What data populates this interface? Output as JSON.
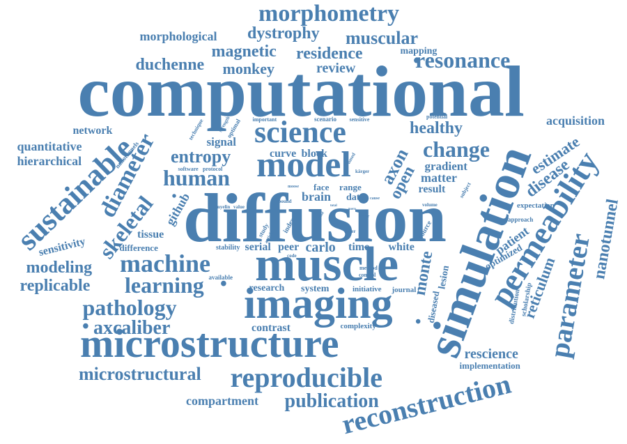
{
  "colors": {
    "word": "#4a7fb0",
    "background": "#ffffff"
  },
  "words": [
    "computational",
    "diffusion",
    "muscle",
    "imaging",
    "microstructure",
    "simulation",
    "model",
    "science",
    "permeability",
    "parameter",
    "reconstruction",
    "reproducible",
    "sustainable",
    "morphometry",
    "dystrophy",
    "muscular",
    "magnetic",
    "residence",
    "morphological",
    "duchenne",
    "monkey",
    "review",
    "resonance",
    "mapping",
    "change",
    "healthy",
    "acquisition",
    "estimate",
    "disease",
    "nanotunnel",
    "reticulum",
    "axon",
    "open",
    "gradient",
    "matter",
    "result",
    "monte",
    "carlo",
    "human",
    "entropy",
    "diameter",
    "skeletal",
    "github",
    "brain",
    "data",
    "machine",
    "learning",
    "pathology",
    "axcaliber",
    "modeling",
    "replicable",
    "sensitivity",
    "difference",
    "tissue",
    "network",
    "quantitative",
    "hierarchical",
    "signal",
    "curve",
    "block",
    "face",
    "range",
    "time",
    "white",
    "peer",
    "serial",
    "stability",
    "research",
    "system",
    "contrast",
    "complexity",
    "initiative",
    "journal",
    "microstructural",
    "compartment",
    "publication",
    "rescience",
    "implementation",
    "patient",
    "optimized",
    "expectation",
    "approach",
    "scholarship",
    "distribution",
    "diseased",
    "lesion",
    "available",
    "method",
    "control",
    "important",
    "scenario",
    "sensitive",
    "potential",
    "technique",
    "strength",
    "optimal",
    "software",
    "protocol",
    "nanotunnels",
    "myelin",
    "value",
    "bound",
    "code",
    "index",
    "study",
    "article",
    "source",
    "volume",
    "subject",
    "based",
    "kärger",
    "moose",
    "spin",
    "water",
    "radius",
    "lower",
    "mern",
    "cause",
    "total",
    "find"
  ]
}
